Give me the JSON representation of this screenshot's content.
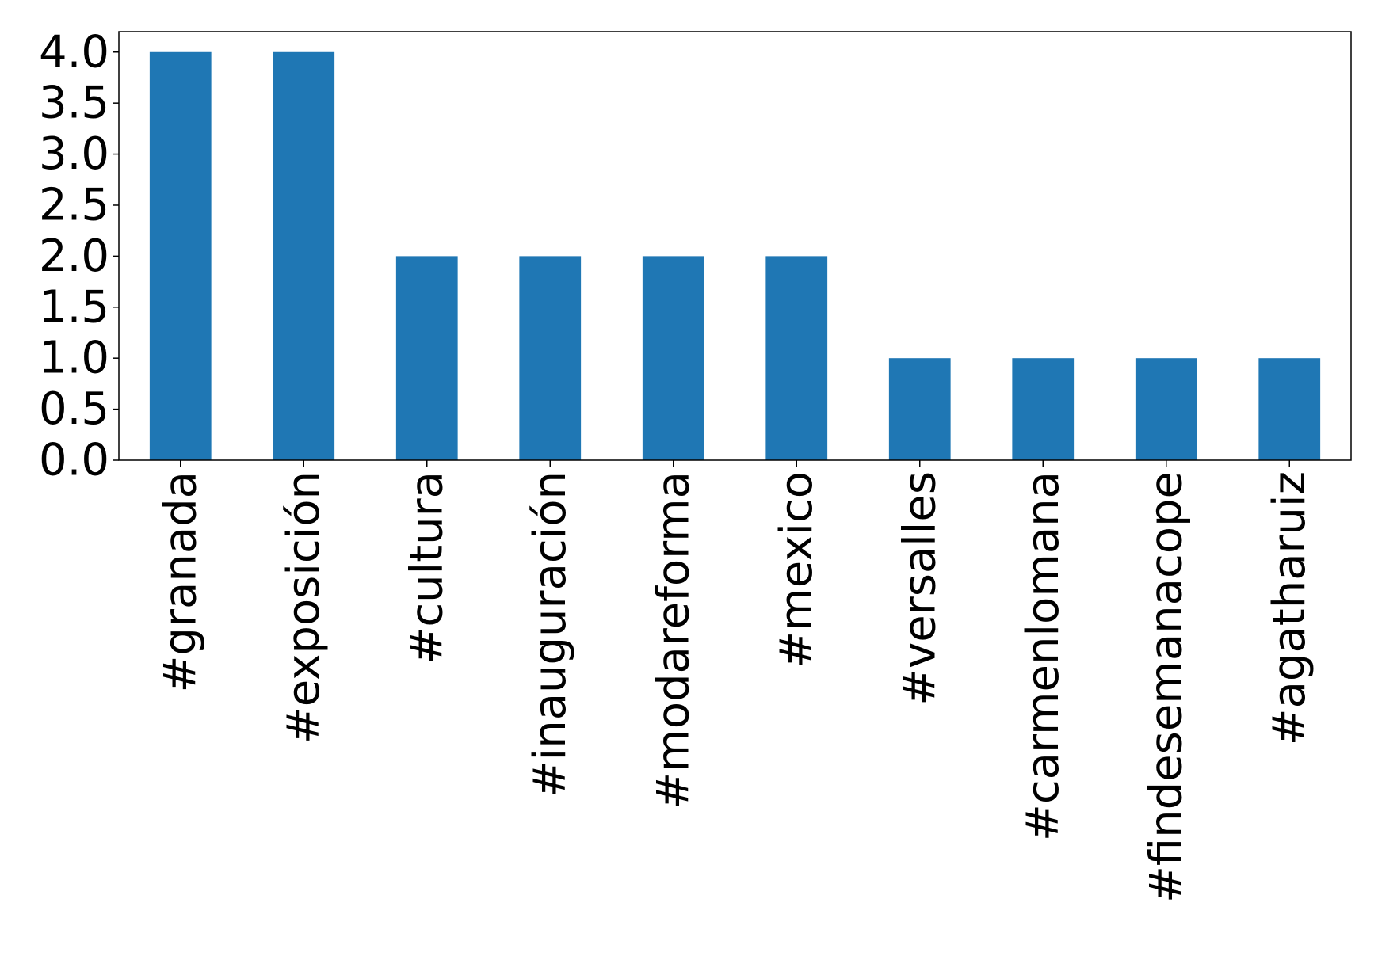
{
  "chart_data": {
    "type": "bar",
    "categories": [
      "#granada",
      "#exposición",
      "#cultura",
      "#inauguración",
      "#modareforma",
      "#mexico",
      "#versalles",
      "#carmenlomana",
      "#findesemanacope",
      "#agatharuiz"
    ],
    "values": [
      4,
      4,
      2,
      2,
      2,
      2,
      1,
      1,
      1,
      1
    ],
    "ylim": [
      0,
      4.2
    ],
    "yticks": [
      "0.0",
      "0.5",
      "1.0",
      "1.5",
      "2.0",
      "2.5",
      "3.0",
      "3.5",
      "4.0"
    ],
    "bar_color": "#1f77b4",
    "grid": false,
    "legend": "none"
  }
}
